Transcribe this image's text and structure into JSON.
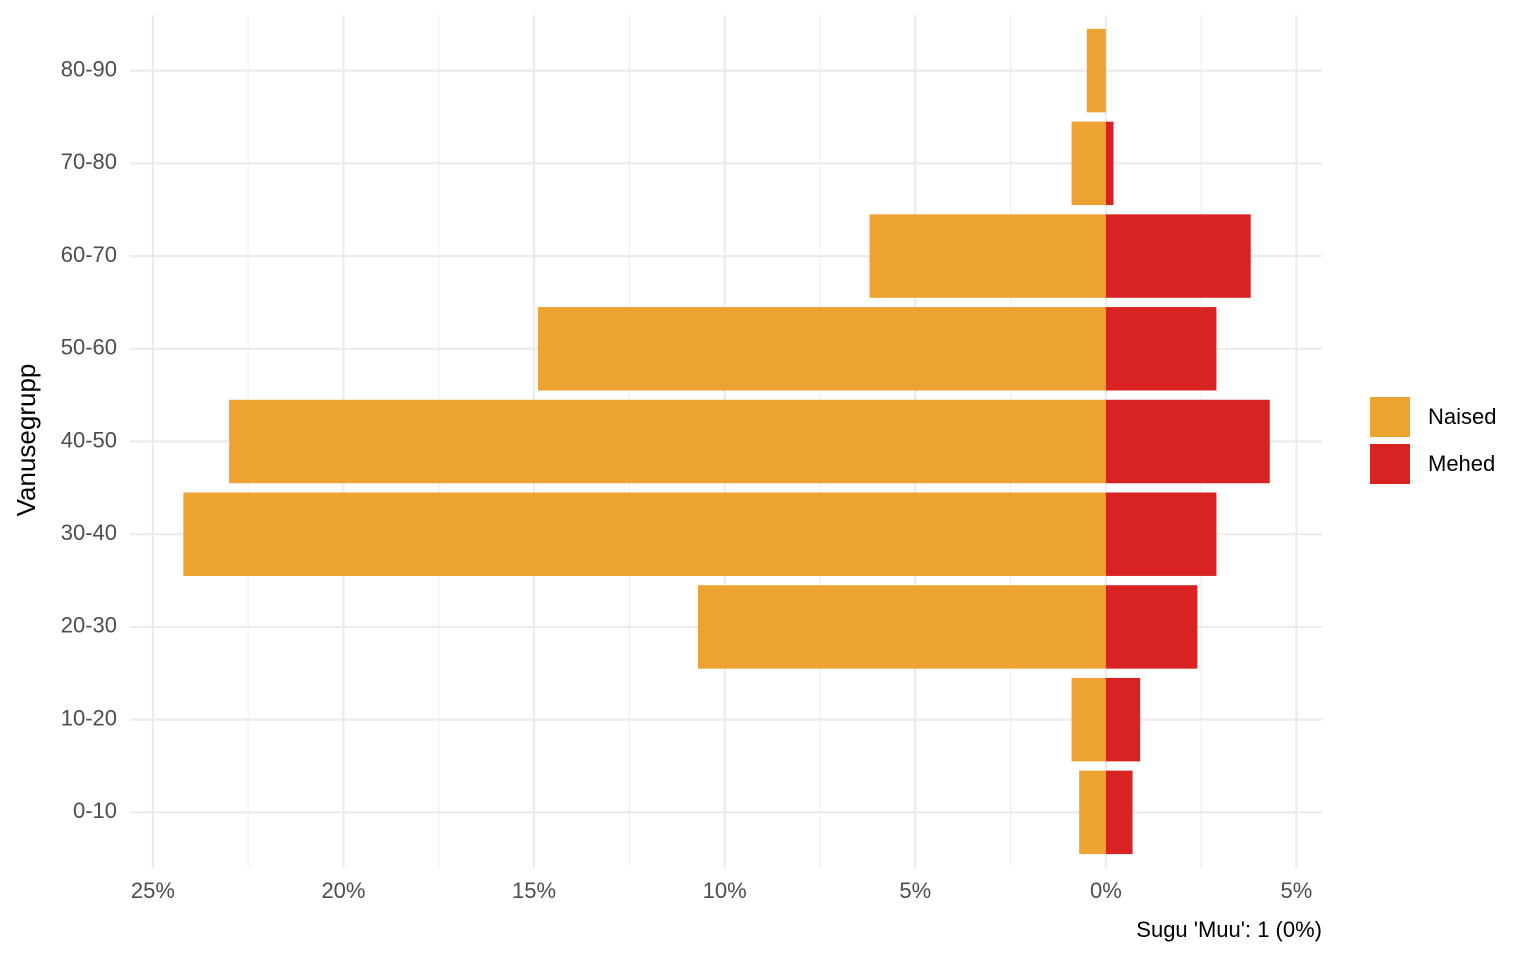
{
  "chart_data": {
    "type": "bar",
    "orientation": "horizontal",
    "y_label": "Vanusegrupp",
    "caption": "Sugu 'Muu': 1 (0%)",
    "categories": [
      "0-10",
      "10-20",
      "20-30",
      "30-40",
      "40-50",
      "50-60",
      "60-70",
      "70-80",
      "80-90"
    ],
    "series": [
      {
        "name": "Naised",
        "color": "#eda331",
        "values": [
          -0.7,
          -0.9,
          -10.7,
          -24.2,
          -23.0,
          -14.9,
          -6.2,
          -0.9,
          -0.5
        ]
      },
      {
        "name": "Mehed",
        "color": "#d92323",
        "values": [
          0.7,
          0.9,
          2.4,
          2.9,
          4.3,
          2.9,
          3.8,
          0.2,
          0
        ]
      }
    ],
    "xlim": [
      -25.6,
      5.67
    ],
    "xticks": [
      {
        "value": -25,
        "label": "25%"
      },
      {
        "value": -20,
        "label": "20%"
      },
      {
        "value": -15,
        "label": "15%"
      },
      {
        "value": -10,
        "label": "10%"
      },
      {
        "value": -5,
        "label": "5%"
      },
      {
        "value": 0,
        "label": "0%"
      },
      {
        "value": 5,
        "label": "5%"
      }
    ],
    "x_minor_ticks": [
      -22.5,
      -17.5,
      -12.5,
      -7.5,
      -2.5,
      2.5
    ],
    "grid": true,
    "legend": "right"
  }
}
